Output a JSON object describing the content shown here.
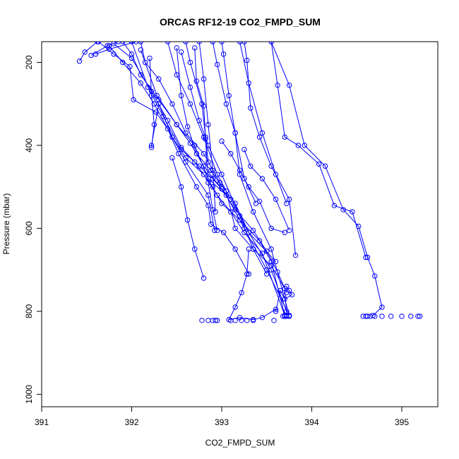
{
  "chart_data": {
    "type": "scatter",
    "title": "ORCAS RF12-19 CO2_FMPD_SUM",
    "xlabel": "CO2_FMPD_SUM",
    "ylabel": "Pressure (mbar)",
    "xlim": [
      391,
      395.4
    ],
    "ylim": [
      1030,
      150
    ],
    "y_reversed": true,
    "x_ticks": [
      391,
      392,
      393,
      394,
      395
    ],
    "x_tick_labels": [
      "391",
      "392",
      "393",
      "394",
      "395"
    ],
    "y_ticks": [
      200,
      400,
      600,
      800,
      1000
    ],
    "y_tick_labels": [
      "200",
      "400",
      "600",
      "800",
      "1000"
    ],
    "grid": false,
    "legend": "none",
    "color": "#0000ff",
    "series": [
      {
        "x": [
          391.62,
          391.48,
          391.42
        ],
        "y": [
          150,
          175,
          197
        ]
      },
      {
        "x": [
          391.85,
          391.73,
          391.55
        ],
        "y": [
          150,
          160,
          183
        ]
      },
      {
        "x": [
          392.05,
          391.75,
          391.6
        ],
        "y": [
          150,
          168,
          180
        ]
      },
      {
        "x": [
          391.63,
          391.8,
          391.98,
          392.02,
          392.27,
          392.4,
          392.52,
          392.72,
          392.85,
          392.88,
          393.02,
          393.15,
          393.3
        ],
        "y": [
          150,
          180,
          210,
          290,
          320,
          360,
          420,
          500,
          545,
          590,
          610,
          650,
          710
        ]
      },
      {
        "x": [
          391.8,
          392.0,
          392.22,
          392.4,
          392.55,
          392.7,
          392.9,
          393.0,
          393.2,
          393.42,
          393.55,
          393.7
        ],
        "y": [
          155,
          190,
          270,
          340,
          405,
          440,
          500,
          540,
          580,
          630,
          680,
          810
        ]
      },
      {
        "x": [
          391.9,
          392.0,
          392.1,
          392.3,
          392.5,
          392.65,
          392.8,
          393.0,
          393.15,
          393.35,
          393.5,
          393.62,
          393.72
        ],
        "y": [
          150,
          180,
          230,
          290,
          350,
          395,
          450,
          505,
          555,
          605,
          655,
          705,
          755
        ]
      },
      {
        "x": [
          391.75,
          391.9,
          392.1,
          392.25,
          392.45,
          392.6,
          392.8,
          392.95,
          393.1,
          393.25,
          393.45,
          393.7
        ],
        "y": [
          160,
          200,
          250,
          300,
          380,
          430,
          470,
          520,
          560,
          610,
          660,
          810
        ]
      },
      {
        "x": [
          392.1,
          392.15,
          392.3,
          392.45,
          392.6,
          392.8,
          392.98,
          393.15,
          393.3,
          393.55,
          393.72
        ],
        "y": [
          150,
          200,
          240,
          300,
          370,
          420,
          490,
          540,
          610,
          700,
          800
        ]
      },
      {
        "x": [
          392.1,
          392.28,
          392.5,
          392.7,
          392.85,
          393.05,
          393.25,
          393.5,
          393.75
        ],
        "y": [
          170,
          280,
          350,
          400,
          480,
          520,
          600,
          700,
          810
        ]
      },
      {
        "x": [
          392.0,
          392.18,
          392.35,
          392.55,
          392.75,
          392.9,
          393.1,
          393.3,
          393.6
        ],
        "y": [
          150,
          260,
          330,
          410,
          450,
          480,
          530,
          610,
          680
        ]
      },
      {
        "x": [
          392.2,
          392.22,
          392.25,
          392.22
        ],
        "y": [
          190,
          280,
          350,
          405
        ]
      },
      {
        "x": [
          392.22,
          392.3,
          392.45,
          392.6,
          392.85,
          392.92
        ],
        "y": [
          400,
          300,
          380,
          440,
          520,
          605
        ]
      },
      {
        "x": [
          392.4,
          392.5,
          392.65,
          392.8,
          392.95,
          393.05,
          393.15,
          393.35,
          393.55,
          393.7,
          393.72
        ],
        "y": [
          150,
          230,
          300,
          380,
          470,
          510,
          600,
          650,
          690,
          745,
          810
        ]
      },
      {
        "x": [
          392.5,
          392.55,
          392.62,
          392.72,
          392.88,
          393.0
        ],
        "y": [
          165,
          280,
          355,
          420,
          460,
          500
        ]
      },
      {
        "x": [
          392.7,
          392.72,
          392.8,
          392.82,
          392.85,
          392.9,
          392.95
        ],
        "y": [
          165,
          245,
          305,
          385,
          490,
          555,
          605
        ]
      },
      {
        "x": [
          392.75,
          392.8,
          392.85,
          392.9,
          392.93
        ],
        "y": [
          150,
          240,
          350,
          460,
          560
        ]
      },
      {
        "x": [
          392.6,
          392.65,
          392.78,
          392.82,
          392.85
        ],
        "y": [
          150,
          200,
          300,
          380,
          440
        ]
      },
      {
        "x": [
          392.9,
          392.95,
          393.05,
          393.15,
          393.25,
          393.38
        ],
        "y": [
          150,
          205,
          300,
          370,
          480,
          540
        ]
      },
      {
        "x": [
          393.0,
          393.02,
          393.08,
          393.15,
          393.2,
          393.35,
          393.55,
          393.75
        ],
        "y": [
          150,
          180,
          280,
          370,
          470,
          560,
          650,
          810
        ]
      },
      {
        "x": [
          392.55,
          392.65,
          392.75,
          392.85,
          393.0,
          393.2,
          393.35,
          393.5
        ],
        "y": [
          175,
          260,
          340,
          400,
          470,
          570,
          650,
          710
        ]
      },
      {
        "x": [
          393.25,
          393.28,
          393.32,
          393.42,
          393.55,
          393.75,
          393.82
        ],
        "y": [
          150,
          195,
          310,
          380,
          450,
          530,
          665
        ]
      },
      {
        "x": [
          393.2,
          393.3,
          393.45,
          393.6,
          393.72
        ],
        "y": [
          150,
          250,
          370,
          470,
          540
        ]
      },
      {
        "x": [
          393.0,
          393.1,
          393.2,
          393.3,
          393.42,
          393.55,
          393.7
        ],
        "y": [
          390,
          420,
          460,
          500,
          535,
          600,
          610
        ]
      },
      {
        "x": [
          393.25,
          393.32,
          393.45,
          393.6,
          393.75
        ],
        "y": [
          410,
          450,
          480,
          530,
          605
        ]
      },
      {
        "x": [
          393.55,
          393.62,
          393.7,
          393.85,
          394.08,
          394.25,
          394.45,
          394.6
        ],
        "y": [
          150,
          255,
          380,
          400,
          445,
          545,
          560,
          670
        ]
      },
      {
        "x": [
          393.55,
          393.75,
          393.92,
          394.15,
          394.35,
          394.52,
          394.62,
          394.7,
          394.78,
          394.68
        ],
        "y": [
          150,
          255,
          400,
          450,
          555,
          595,
          670,
          715,
          790,
          810
        ]
      },
      {
        "x": [
          393.3,
          393.28,
          393.22,
          393.15,
          393.08,
          393.2,
          393.35,
          393.45,
          393.6
        ],
        "y": [
          650,
          710,
          755,
          790,
          820,
          815,
          820,
          815,
          795
        ]
      },
      {
        "x": [
          393.72,
          393.75,
          393.78,
          393.7,
          393.65,
          393.6
        ],
        "y": [
          740,
          750,
          760,
          770,
          750,
          800
        ]
      },
      {
        "x": [
          392.45,
          392.55,
          392.62,
          392.7,
          392.8
        ],
        "y": [
          430,
          500,
          580,
          650,
          720
        ]
      }
    ],
    "flat_points": [
      {
        "x": [
          392.78,
          392.85,
          392.9,
          392.93,
          392.95,
          393.1,
          393.15,
          393.22,
          393.28,
          393.35,
          393.58
        ],
        "y": 822
      },
      {
        "x": [
          393.68,
          393.7,
          393.72,
          393.75
        ],
        "y": 812
      },
      {
        "x": [
          394.57,
          394.6,
          394.62,
          394.65,
          394.7,
          394.78,
          394.88,
          395.0,
          395.1,
          395.18,
          395.2
        ],
        "y": 812
      }
    ]
  }
}
